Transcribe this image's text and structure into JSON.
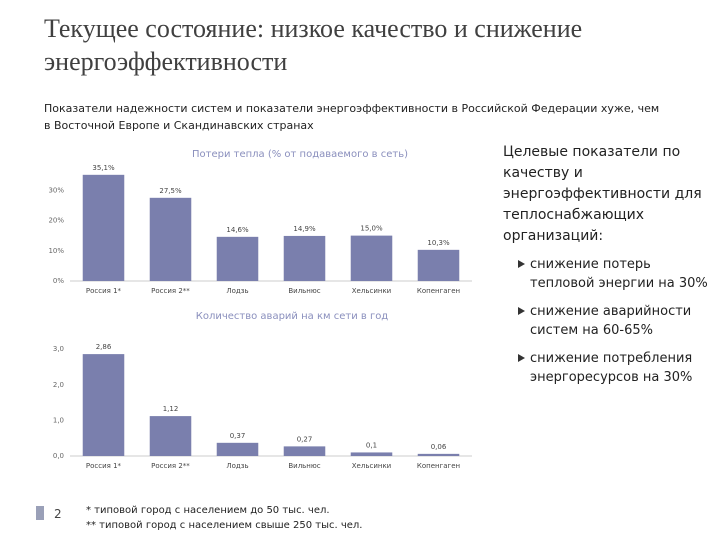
{
  "title": "Текущее состояние: низкое качество и снижение энергоэффективности",
  "subtitle": "Показатели надежности систем и показатели энергоэффективности в Российской Федерации хуже, чем в Восточной Европе и Скандинавских странах",
  "chart_data": [
    {
      "type": "bar",
      "title": "Потери тепла (% от подаваемого в сеть)",
      "categories": [
        "Россия 1*",
        "Россия 2**",
        "Лодзь",
        "Вильнюс",
        "Хельсинки",
        "Копенгаген"
      ],
      "values": [
        35.1,
        27.5,
        14.6,
        14.9,
        15.0,
        10.3
      ],
      "value_labels": [
        "35,1%",
        "27,5%",
        "14,6%",
        "14,9%",
        "15,0%",
        "10,3%"
      ],
      "color": "#7a7fad",
      "grid": false,
      "ylim": [
        0,
        40
      ],
      "yticks": [
        {
          "value": 0,
          "label": "0%"
        },
        {
          "value": 10,
          "label": "10%"
        },
        {
          "value": 20,
          "label": "20%"
        },
        {
          "value": 30,
          "label": "30%"
        }
      ]
    },
    {
      "type": "bar",
      "title": "Количество аварий на км сети в год",
      "categories": [
        "Россия 1*",
        "Россия 2**",
        "Лодзь",
        "Вильнюс",
        "Хельсинки",
        "Копенгаген"
      ],
      "values": [
        2.86,
        1.12,
        0.37,
        0.27,
        0.1,
        0.06
      ],
      "value_labels": [
        "2,86",
        "1,12",
        "0,37",
        "0,27",
        "0,1",
        "0,06"
      ],
      "color": "#7a7fad",
      "grid": false,
      "ylim": [
        0,
        3.2
      ],
      "yticks": [
        {
          "value": 0,
          "label": "0,0"
        },
        {
          "value": 1,
          "label": "1,0"
        },
        {
          "value": 2,
          "label": "2,0"
        },
        {
          "value": 3,
          "label": "3,0"
        }
      ]
    }
  ],
  "targets": {
    "heading": "Целевые показатели по качеству и энергоэффективности для теплоснабжающих организаций:",
    "items": [
      "снижение потерь тепловой энергии на 30%",
      "снижение аварийности систем на 60-65%",
      "снижение потребления энергоресурсов на 30%"
    ]
  },
  "footnotes": [
    "* типовой город с населением до 50 тыс. чел.",
    "** типовой город с населением свыше 250 тыс. чел."
  ],
  "page_number": "2"
}
